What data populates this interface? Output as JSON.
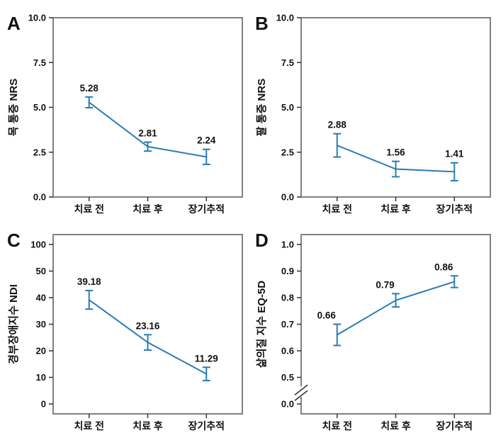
{
  "figure": {
    "background": "#ffffff",
    "accent_color": "#2b7cb5",
    "frame_color": "#595959",
    "tick_color": "#333333",
    "text_color": "#111111"
  },
  "chart_data": [
    {
      "type": "line",
      "panel_label": "A",
      "ylabel": "목 통증 NRS",
      "xlabel": "",
      "categories": [
        "치료 전",
        "치료 후",
        "장기추적"
      ],
      "values": [
        5.28,
        2.81,
        2.24
      ],
      "errors": [
        0.3,
        0.25,
        0.42
      ],
      "data_labels": [
        "5.28",
        "2.81",
        "2.24"
      ],
      "y_ticks": [
        0,
        2.5,
        5,
        7.5,
        10
      ],
      "y_tick_labels": [
        "0.0",
        "2.5",
        "5.0",
        "7.5",
        "10.0"
      ],
      "ylim": [
        0,
        10
      ],
      "axis_break": false,
      "grid": false
    },
    {
      "type": "line",
      "panel_label": "B",
      "ylabel": "팔 통증 NRS",
      "xlabel": "",
      "categories": [
        "치료 전",
        "치료 후",
        "장기추적"
      ],
      "values": [
        2.88,
        1.56,
        1.41
      ],
      "errors": [
        0.65,
        0.43,
        0.5
      ],
      "data_labels": [
        "2.88",
        "1.56",
        "1.41"
      ],
      "y_ticks": [
        0,
        2.5,
        5,
        7.5,
        10
      ],
      "y_tick_labels": [
        "0.0",
        "2.5",
        "5.0",
        "7.5",
        "10.0"
      ],
      "ylim": [
        0,
        10
      ],
      "axis_break": false,
      "grid": false
    },
    {
      "type": "line",
      "panel_label": "C",
      "ylabel": "경부장애지수 NDI",
      "xlabel": "",
      "categories": [
        "치료 전",
        "치료 후",
        "장기추적"
      ],
      "values": [
        39.18,
        23.16,
        11.29
      ],
      "errors": [
        3.5,
        2.9,
        2.5
      ],
      "data_labels": [
        "39.18",
        "23.16",
        "11.29"
      ],
      "y_ticks": [
        0,
        10,
        20,
        30,
        40,
        50,
        100
      ],
      "y_tick_labels": [
        "0",
        "10",
        "20",
        "30",
        "40",
        "50",
        "100"
      ],
      "ylim": [
        0,
        100
      ],
      "axis_break": false,
      "grid": false
    },
    {
      "type": "line",
      "panel_label": "D",
      "ylabel": "삶의질 지수 EQ-5D",
      "xlabel": "",
      "categories": [
        "치료 전",
        "치료 후",
        "장기추적"
      ],
      "values": [
        0.66,
        0.79,
        0.86
      ],
      "errors": [
        0.04,
        0.025,
        0.022
      ],
      "data_labels": [
        "0.66",
        "0.79",
        "0.86"
      ],
      "y_ticks": [
        0,
        0.5,
        0.6,
        0.7,
        0.8,
        0.9,
        1.0
      ],
      "y_tick_labels": [
        "0.0",
        "0.5",
        "0.6",
        "0.7",
        "0.8",
        "0.9",
        "1.0"
      ],
      "ylim": [
        0,
        1
      ],
      "axis_break": true,
      "grid": false
    }
  ]
}
